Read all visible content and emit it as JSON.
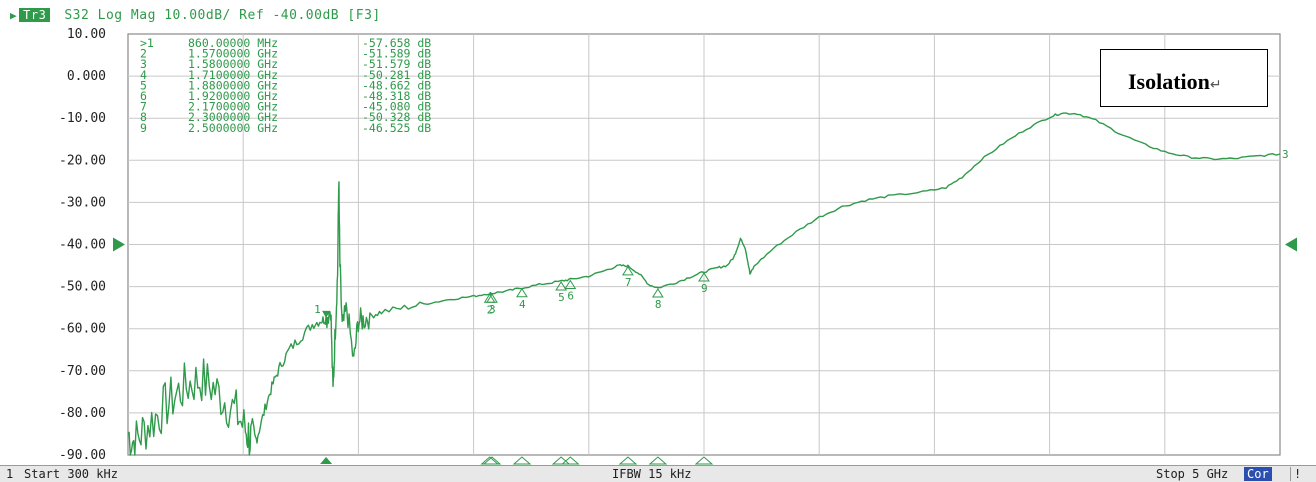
{
  "header": {
    "trace_tag": "Tr3",
    "title": "S32 Log Mag 10.00dB/ Ref -40.00dB [F3]"
  },
  "annotation": {
    "label": "Isolation",
    "mark": "↵"
  },
  "marker_table": [
    {
      "id": ">1",
      "freq": "860.00000 MHz",
      "value": "-57.658 dB"
    },
    {
      "id": "2",
      "freq": "1.5700000 GHz",
      "value": "-51.589 dB"
    },
    {
      "id": "3",
      "freq": "1.5800000 GHz",
      "value": "-51.579 dB"
    },
    {
      "id": "4",
      "freq": "1.7100000 GHz",
      "value": "-50.281 dB"
    },
    {
      "id": "5",
      "freq": "1.8800000 GHz",
      "value": "-48.662 dB"
    },
    {
      "id": "6",
      "freq": "1.9200000 GHz",
      "value": "-48.318 dB"
    },
    {
      "id": "7",
      "freq": "2.1700000 GHz",
      "value": "-45.080 dB"
    },
    {
      "id": "8",
      "freq": "2.3000000 GHz",
      "value": "-50.328 dB"
    },
    {
      "id": "9",
      "freq": "2.5000000 GHz",
      "value": "-46.525 dB"
    }
  ],
  "status_bar": {
    "channel": "1",
    "start": "Start 300 kHz",
    "ifbw": "IFBW 15 kHz",
    "stop": "Stop 5 GHz",
    "cor": "Cor",
    "end": "!"
  },
  "colors": {
    "trace": "#2e9a4a",
    "grid": "#c8c8c8",
    "frame": "#8a8a8a",
    "status_bg": "#e8e8e8",
    "cor_bg": "#2a4fae"
  },
  "chart_data": {
    "type": "line",
    "title": "S32 Log Mag 10.00dB/ Ref -40.00dB [F3]",
    "xlabel": "",
    "ylabel": "",
    "xlim": [
      0.0003,
      5.0
    ],
    "ylim": [
      -90,
      10
    ],
    "x_unit": "GHz",
    "y_unit": "dB",
    "reference_level": -40,
    "y_ticks": [
      "10.00",
      "0.000",
      "-10.00",
      "-20.00",
      "-30.00",
      "-40.00",
      "-50.00",
      "-60.00",
      "-70.00",
      "-80.00",
      "-90.00"
    ],
    "grid": true,
    "series": [
      {
        "points": [
          [
            0.0003,
            -85
          ],
          [
            0.03,
            -87
          ],
          [
            0.07,
            -84
          ],
          [
            0.12,
            -81
          ],
          [
            0.17,
            -78
          ],
          [
            0.22,
            -75
          ],
          [
            0.27,
            -73
          ],
          [
            0.32,
            -72
          ],
          [
            0.37,
            -74
          ],
          [
            0.42,
            -77
          ],
          [
            0.47,
            -80
          ],
          [
            0.51,
            -84
          ],
          [
            0.53,
            -86
          ],
          [
            0.55,
            -88
          ],
          [
            0.57,
            -84
          ],
          [
            0.6,
            -78
          ],
          [
            0.63,
            -73
          ],
          [
            0.66,
            -69
          ],
          [
            0.7,
            -65
          ],
          [
            0.75,
            -62
          ],
          [
            0.8,
            -59
          ],
          [
            0.84,
            -58
          ],
          [
            0.86,
            -57.7
          ],
          [
            0.88,
            -55
          ],
          [
            0.89,
            -75
          ],
          [
            0.9,
            -60
          ],
          [
            0.91,
            -47
          ],
          [
            0.915,
            -24
          ],
          [
            0.92,
            -45
          ],
          [
            0.93,
            -60
          ],
          [
            0.95,
            -55
          ],
          [
            0.98,
            -68
          ],
          [
            1.0,
            -58
          ],
          [
            1.02,
            -58
          ],
          [
            1.05,
            -57
          ],
          [
            1.1,
            -56
          ],
          [
            1.2,
            -55
          ],
          [
            1.3,
            -54
          ],
          [
            1.4,
            -53
          ],
          [
            1.5,
            -52.3
          ],
          [
            1.57,
            -51.6
          ],
          [
            1.58,
            -51.6
          ],
          [
            1.65,
            -51
          ],
          [
            1.71,
            -50.3
          ],
          [
            1.8,
            -49.4
          ],
          [
            1.88,
            -48.7
          ],
          [
            1.92,
            -48.3
          ],
          [
            2.0,
            -47.5
          ],
          [
            2.08,
            -46
          ],
          [
            2.13,
            -45
          ],
          [
            2.17,
            -45.1
          ],
          [
            2.22,
            -47
          ],
          [
            2.26,
            -49.5
          ],
          [
            2.3,
            -50.3
          ],
          [
            2.38,
            -49
          ],
          [
            2.45,
            -47.5
          ],
          [
            2.5,
            -46.5
          ],
          [
            2.56,
            -45.5
          ],
          [
            2.6,
            -45
          ],
          [
            2.63,
            -43
          ],
          [
            2.65,
            -40
          ],
          [
            2.66,
            -38.5
          ],
          [
            2.68,
            -41
          ],
          [
            2.7,
            -47
          ],
          [
            2.72,
            -45
          ],
          [
            2.8,
            -41
          ],
          [
            2.9,
            -37
          ],
          [
            3.0,
            -33.5
          ],
          [
            3.1,
            -31
          ],
          [
            3.2,
            -29.5
          ],
          [
            3.3,
            -28.5
          ],
          [
            3.45,
            -27.5
          ],
          [
            3.55,
            -26.5
          ],
          [
            3.62,
            -24
          ],
          [
            3.7,
            -20
          ],
          [
            3.8,
            -16
          ],
          [
            3.9,
            -12.5
          ],
          [
            4.0,
            -9.7
          ],
          [
            4.05,
            -8.8
          ],
          [
            4.12,
            -8.9
          ],
          [
            4.2,
            -10.5
          ],
          [
            4.3,
            -13.5
          ],
          [
            4.4,
            -16
          ],
          [
            4.5,
            -18
          ],
          [
            4.6,
            -19.2
          ],
          [
            4.7,
            -19.7
          ],
          [
            4.8,
            -19.6
          ],
          [
            4.9,
            -19.0
          ],
          [
            5.0,
            -18.5
          ]
        ]
      }
    ],
    "markers": [
      {
        "label": "1",
        "x": 0.86,
        "y": -57.658
      },
      {
        "label": "2",
        "x": 1.57,
        "y": -51.589
      },
      {
        "label": "3",
        "x": 1.58,
        "y": -51.579
      },
      {
        "label": "4",
        "x": 1.71,
        "y": -50.281
      },
      {
        "label": "5",
        "x": 1.88,
        "y": -48.662
      },
      {
        "label": "6",
        "x": 1.92,
        "y": -48.318
      },
      {
        "label": "7",
        "x": 2.17,
        "y": -45.08
      },
      {
        "label": "8",
        "x": 2.3,
        "y": -50.328
      },
      {
        "label": "9",
        "x": 2.5,
        "y": -46.525
      }
    ],
    "trace_end_label": "3"
  }
}
